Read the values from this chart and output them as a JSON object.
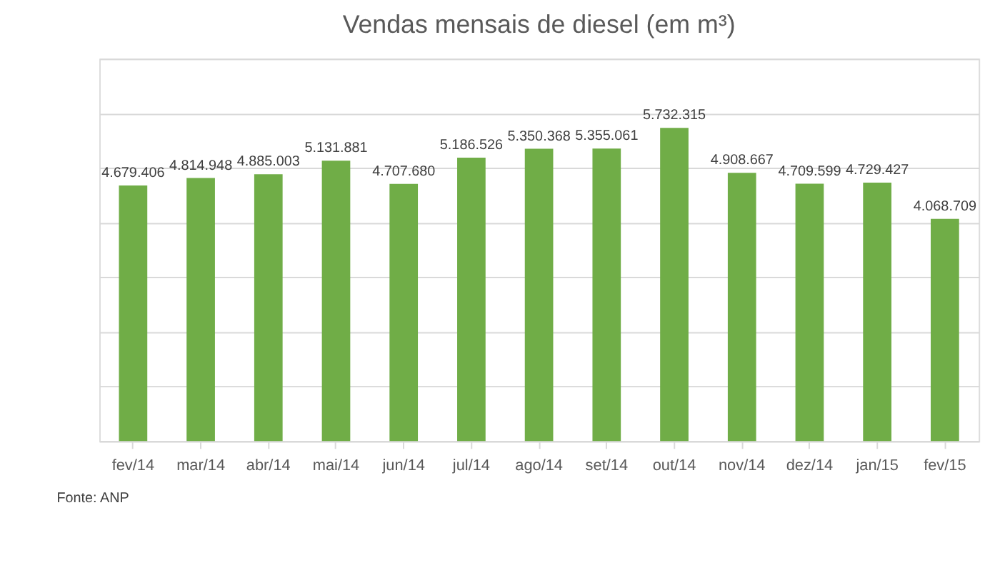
{
  "chart_data": {
    "type": "bar",
    "title": "Vendas mensais de diesel (em m³)",
    "categories": [
      "fev/14",
      "mar/14",
      "abr/14",
      "mai/14",
      "jun/14",
      "jul/14",
      "ago/14",
      "set/14",
      "out/14",
      "nov/14",
      "dez/14",
      "jan/15",
      "fev/15"
    ],
    "values": [
      4679406,
      4814948,
      4885003,
      5131881,
      4707680,
      5186526,
      5350368,
      5355061,
      5732315,
      4908667,
      4709599,
      4729427,
      4068709
    ],
    "value_labels": [
      "4.679.406",
      "4.814.948",
      "4.885.003",
      "5.131.881",
      "4.707.680",
      "5.186.526",
      "5.350.368",
      "5.355.061",
      "5.732.315",
      "4.908.667",
      "4.709.599",
      "4.729.427",
      "4.068.709"
    ],
    "color": "#70ad47",
    "ylim": [
      0,
      7000000
    ],
    "grid": "y",
    "tick_labels": "x",
    "annotations": [
      "Fonte: ANP"
    ]
  }
}
